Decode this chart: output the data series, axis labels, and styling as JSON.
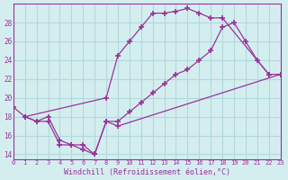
{
  "line1_x": [
    0,
    1,
    8,
    9,
    10,
    11,
    12,
    13,
    14,
    15,
    16,
    17,
    18,
    22
  ],
  "line1_y": [
    19.0,
    18.0,
    20.0,
    24.5,
    26.0,
    27.5,
    29.0,
    29.0,
    29.2,
    29.5,
    29.0,
    28.5,
    28.5,
    22.5
  ],
  "line2_x": [
    1,
    2,
    3,
    4,
    5,
    6,
    7,
    8,
    9,
    23
  ],
  "line2_y": [
    18.0,
    17.5,
    17.5,
    15.0,
    15.0,
    14.5,
    14.0,
    17.5,
    17.0,
    22.5
  ],
  "line3_x": [
    1,
    2,
    3,
    4,
    5,
    6,
    7,
    8,
    9,
    10,
    11,
    12,
    13,
    14,
    15,
    16,
    17,
    18,
    19,
    20,
    21,
    22,
    23
  ],
  "line3_y": [
    18.0,
    17.5,
    18.0,
    15.5,
    15.0,
    15.0,
    14.0,
    17.5,
    17.5,
    18.5,
    19.5,
    20.5,
    21.5,
    22.5,
    23.0,
    24.0,
    25.0,
    27.5,
    28.0,
    26.0,
    24.0,
    22.5,
    22.5
  ],
  "color": "#993399",
  "bg_color": "#d4eef0",
  "grid_color": "#b0d8dc",
  "xlabel": "Windchill (Refroidissement éolien,°C)",
  "xlim": [
    0,
    23
  ],
  "ylim": [
    13.5,
    30.0
  ],
  "yticks": [
    14,
    16,
    18,
    20,
    22,
    24,
    26,
    28
  ],
  "xticks": [
    0,
    1,
    2,
    3,
    4,
    5,
    6,
    7,
    8,
    9,
    10,
    11,
    12,
    13,
    14,
    15,
    16,
    17,
    18,
    19,
    20,
    21,
    22,
    23
  ]
}
